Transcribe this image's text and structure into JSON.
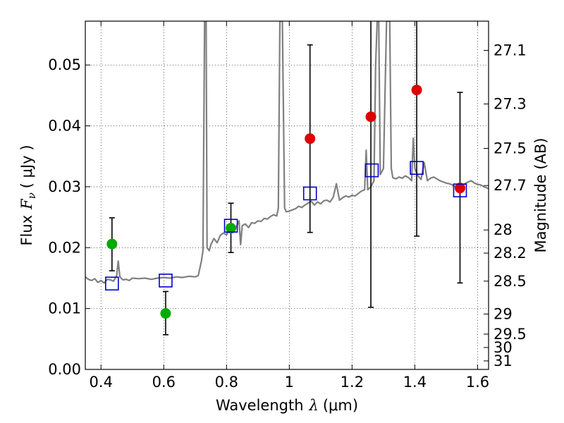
{
  "chart_data": {
    "type": "scatter",
    "xlabel_text": "Wavelength",
    "xlabel_math": "λ",
    "xlabel_unit": "(μm)",
    "ylabel_text": "Flux",
    "ylabel_math": "F",
    "ylabel_sub": "ν",
    "ylabel_unit": "( μJy )",
    "y2label": "Magnitude (AB)",
    "xlim": [
      0.35,
      1.635
    ],
    "ylim": [
      0.0,
      0.0572
    ],
    "grid": true,
    "x_ticks": [
      0.4,
      0.6,
      0.8,
      1.0,
      1.2,
      1.4,
      1.6
    ],
    "x_tick_labels": [
      "0.4",
      "0.6",
      "0.8",
      "1",
      "1.2",
      "1.4",
      "1.6"
    ],
    "y_ticks": [
      0.0,
      0.01,
      0.02,
      0.03,
      0.04,
      0.05
    ],
    "y_tick_labels": [
      "0.00",
      "0.01",
      "0.02",
      "0.03",
      "0.04",
      "0.05"
    ],
    "y2_ticks": [
      {
        "label": "27.1",
        "flux": 0.0524
      },
      {
        "label": "27.3",
        "flux": 0.0436
      },
      {
        "label": "27.5",
        "flux": 0.0363
      },
      {
        "label": "27.7",
        "flux": 0.0302
      },
      {
        "label": "28",
        "flux": 0.0229
      },
      {
        "label": "28.2",
        "flux": 0.0191
      },
      {
        "label": "28.5",
        "flux": 0.0145
      },
      {
        "label": "29",
        "flux": 0.0091
      },
      {
        "label": "29.5",
        "flux": 0.0058
      },
      {
        "label": "30",
        "flux": 0.0036
      },
      {
        "label": "31",
        "flux": 0.0014
      }
    ],
    "series": [
      {
        "kind": "line",
        "color": "#808080",
        "points": [
          [
            0.35,
            0.0152
          ],
          [
            0.36,
            0.0148
          ],
          [
            0.37,
            0.0146
          ],
          [
            0.38,
            0.0149
          ],
          [
            0.39,
            0.0143
          ],
          [
            0.4,
            0.0146
          ],
          [
            0.41,
            0.0142
          ],
          [
            0.42,
            0.0148
          ],
          [
            0.43,
            0.0147
          ],
          [
            0.44,
            0.0145
          ],
          [
            0.45,
            0.0154
          ],
          [
            0.455,
            0.0178
          ],
          [
            0.46,
            0.0152
          ],
          [
            0.47,
            0.0147
          ],
          [
            0.48,
            0.0148
          ],
          [
            0.49,
            0.0146
          ],
          [
            0.5,
            0.015
          ],
          [
            0.52,
            0.0149
          ],
          [
            0.54,
            0.015
          ],
          [
            0.56,
            0.0148
          ],
          [
            0.58,
            0.015
          ],
          [
            0.6,
            0.0151
          ],
          [
            0.62,
            0.015
          ],
          [
            0.64,
            0.0152
          ],
          [
            0.66,
            0.0151
          ],
          [
            0.68,
            0.0153
          ],
          [
            0.7,
            0.0152
          ],
          [
            0.71,
            0.0154
          ],
          [
            0.72,
            0.0178
          ],
          [
            0.725,
            0.0195
          ],
          [
            0.73,
            0.0572
          ],
          [
            0.735,
            0.0572
          ],
          [
            0.738,
            0.02
          ],
          [
            0.745,
            0.0195
          ],
          [
            0.75,
            0.0205
          ],
          [
            0.76,
            0.0215
          ],
          [
            0.77,
            0.0208
          ],
          [
            0.78,
            0.022
          ],
          [
            0.79,
            0.0224
          ],
          [
            0.8,
            0.0221
          ],
          [
            0.81,
            0.023
          ],
          [
            0.82,
            0.0227
          ],
          [
            0.83,
            0.0233
          ],
          [
            0.84,
            0.0244
          ],
          [
            0.845,
            0.0205
          ],
          [
            0.85,
            0.0236
          ],
          [
            0.86,
            0.0239
          ],
          [
            0.87,
            0.0233
          ],
          [
            0.88,
            0.0241
          ],
          [
            0.89,
            0.024
          ],
          [
            0.9,
            0.0244
          ],
          [
            0.91,
            0.0243
          ],
          [
            0.92,
            0.0248
          ],
          [
            0.93,
            0.0247
          ],
          [
            0.94,
            0.0251
          ],
          [
            0.95,
            0.0254
          ],
          [
            0.96,
            0.0252
          ],
          [
            0.965,
            0.0265
          ],
          [
            0.97,
            0.0572
          ],
          [
            0.978,
            0.0572
          ],
          [
            0.985,
            0.0265
          ],
          [
            0.99,
            0.0259
          ],
          [
            1.0,
            0.026
          ],
          [
            1.01,
            0.0262
          ],
          [
            1.02,
            0.0264
          ],
          [
            1.03,
            0.0268
          ],
          [
            1.04,
            0.0266
          ],
          [
            1.05,
            0.027
          ],
          [
            1.06,
            0.0273
          ],
          [
            1.07,
            0.0276
          ],
          [
            1.08,
            0.027
          ],
          [
            1.09,
            0.0275
          ],
          [
            1.1,
            0.0272
          ],
          [
            1.11,
            0.0277
          ],
          [
            1.12,
            0.0278
          ],
          [
            1.13,
            0.0275
          ],
          [
            1.14,
            0.0283
          ],
          [
            1.15,
            0.0305
          ],
          [
            1.16,
            0.0278
          ],
          [
            1.17,
            0.0282
          ],
          [
            1.18,
            0.0285
          ],
          [
            1.19,
            0.0283
          ],
          [
            1.2,
            0.0286
          ],
          [
            1.21,
            0.0285
          ],
          [
            1.22,
            0.0289
          ],
          [
            1.23,
            0.0293
          ],
          [
            1.24,
            0.0295
          ],
          [
            1.245,
            0.036
          ],
          [
            1.25,
            0.0295
          ],
          [
            1.26,
            0.03
          ],
          [
            1.27,
            0.031
          ],
          [
            1.275,
            0.05
          ],
          [
            1.28,
            0.0572
          ],
          [
            1.285,
            0.0572
          ],
          [
            1.29,
            0.032
          ],
          [
            1.3,
            0.033
          ],
          [
            1.31,
            0.0572
          ],
          [
            1.32,
            0.0572
          ],
          [
            1.325,
            0.033
          ],
          [
            1.33,
            0.0315
          ],
          [
            1.34,
            0.0313
          ],
          [
            1.35,
            0.0316
          ],
          [
            1.36,
            0.0314
          ],
          [
            1.37,
            0.0318
          ],
          [
            1.38,
            0.0315
          ],
          [
            1.39,
            0.031
          ],
          [
            1.395,
            0.038
          ],
          [
            1.4,
            0.033
          ],
          [
            1.41,
            0.0318
          ],
          [
            1.42,
            0.0312
          ],
          [
            1.43,
            0.034
          ],
          [
            1.44,
            0.031
          ],
          [
            1.45,
            0.0314
          ],
          [
            1.46,
            0.0316
          ],
          [
            1.47,
            0.0313
          ],
          [
            1.48,
            0.031
          ],
          [
            1.49,
            0.0308
          ],
          [
            1.5,
            0.0306
          ],
          [
            1.51,
            0.0305
          ],
          [
            1.52,
            0.0303
          ],
          [
            1.53,
            0.03
          ],
          [
            1.54,
            0.0298
          ],
          [
            1.55,
            0.03
          ],
          [
            1.56,
            0.0305
          ],
          [
            1.57,
            0.0308
          ],
          [
            1.58,
            0.031
          ],
          [
            1.59,
            0.0306
          ],
          [
            1.6,
            0.0304
          ],
          [
            1.61,
            0.0303
          ],
          [
            1.62,
            0.03
          ],
          [
            1.635,
            0.0297
          ]
        ]
      },
      {
        "kind": "markers",
        "marker": "circle",
        "points": [
          {
            "x": 0.435,
            "y": 0.0206,
            "yerr_low": 0.0162,
            "yerr_high": 0.0249,
            "color": "#00aa00"
          },
          {
            "x": 0.606,
            "y": 0.0092,
            "yerr_low": 0.0057,
            "yerr_high": 0.0128,
            "color": "#00aa00"
          },
          {
            "x": 0.814,
            "y": 0.0232,
            "yerr_low": 0.0192,
            "yerr_high": 0.0273,
            "color": "#00aa00"
          },
          {
            "x": 1.066,
            "y": 0.0379,
            "yerr_low": 0.0225,
            "yerr_high": 0.0533,
            "color": "#dd0000"
          },
          {
            "x": 1.26,
            "y": 0.0415,
            "yerr_low": 0.0102,
            "yerr_high": 0.0572,
            "color": "#dd0000"
          },
          {
            "x": 1.406,
            "y": 0.0459,
            "yerr_low": 0.0219,
            "yerr_high": 0.0572,
            "color": "#dd0000"
          },
          {
            "x": 1.544,
            "y": 0.0298,
            "yerr_low": 0.0142,
            "yerr_high": 0.0455,
            "color": "#dd0000"
          }
        ]
      },
      {
        "kind": "markers",
        "marker": "open-square",
        "color": "#0000cc",
        "points": [
          {
            "x": 0.435,
            "y": 0.0141
          },
          {
            "x": 0.606,
            "y": 0.0146
          },
          {
            "x": 0.814,
            "y": 0.0236
          },
          {
            "x": 1.066,
            "y": 0.0289
          },
          {
            "x": 1.263,
            "y": 0.0327
          },
          {
            "x": 1.406,
            "y": 0.0331
          },
          {
            "x": 1.544,
            "y": 0.0294
          }
        ]
      }
    ]
  }
}
